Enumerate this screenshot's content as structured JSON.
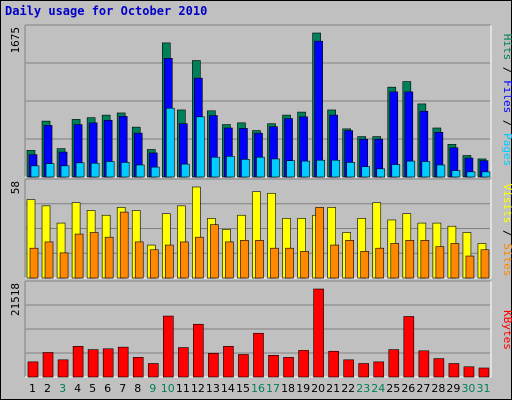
{
  "chart_data": [
    {
      "type": "bar",
      "title": "Daily usage for October 2010",
      "categories": [
        "1",
        "2",
        "3",
        "4",
        "5",
        "6",
        "7",
        "8",
        "9",
        "10",
        "11",
        "12",
        "13",
        "14",
        "15",
        "16",
        "17",
        "18",
        "19",
        "20",
        "21",
        "22",
        "23",
        "24",
        "25",
        "26",
        "27",
        "28",
        "29",
        "30",
        "31"
      ],
      "weekend_days": [
        "3",
        "9",
        "10",
        "16",
        "17",
        "23",
        "24",
        "30",
        "31"
      ],
      "ymax_label": "1675",
      "ylim": [
        0,
        1675
      ],
      "grid": true,
      "series": [
        {
          "name": "Hits",
          "color": "#00805a",
          "values": [
            310,
            650,
            330,
            670,
            690,
            720,
            745,
            580,
            320,
            1560,
            780,
            1355,
            770,
            610,
            630,
            540,
            620,
            720,
            755,
            1675,
            780,
            560,
            470,
            470,
            1045,
            1110,
            850,
            570,
            380,
            250,
            210
          ]
        },
        {
          "name": "Files",
          "color": "#0000ff",
          "values": [
            260,
            600,
            290,
            610,
            630,
            660,
            705,
            510,
            280,
            1380,
            620,
            1150,
            715,
            570,
            565,
            510,
            585,
            680,
            700,
            1580,
            720,
            540,
            440,
            440,
            990,
            990,
            765,
            520,
            340,
            220,
            190
          ]
        },
        {
          "name": "Pages",
          "color": "#00ccff",
          "values": [
            130,
            155,
            130,
            165,
            160,
            180,
            170,
            140,
            115,
            800,
            150,
            700,
            230,
            240,
            205,
            230,
            210,
            190,
            185,
            195,
            195,
            170,
            120,
            95,
            145,
            185,
            180,
            140,
            75,
            60,
            60
          ]
        }
      ]
    },
    {
      "type": "bar",
      "categories": [
        "1",
        "2",
        "3",
        "4",
        "5",
        "6",
        "7",
        "8",
        "9",
        "10",
        "11",
        "12",
        "13",
        "14",
        "15",
        "16",
        "17",
        "18",
        "19",
        "20",
        "21",
        "22",
        "23",
        "24",
        "25",
        "26",
        "27",
        "28",
        "29",
        "30",
        "31"
      ],
      "ymax_label": "58",
      "ylim": [
        0,
        58
      ],
      "grid": true,
      "series": [
        {
          "name": "Visits",
          "color": "#ffff00",
          "values": [
            50,
            46,
            35,
            48,
            43,
            40,
            45,
            43,
            21,
            41,
            46,
            58,
            38,
            31,
            40,
            55,
            54,
            38,
            38,
            40,
            45,
            29,
            38,
            48,
            37,
            41,
            35,
            35,
            33,
            29,
            22
          ]
        },
        {
          "name": "Sites",
          "color": "#ff8800",
          "values": [
            19,
            23,
            16,
            28,
            29,
            26,
            42,
            23,
            18,
            21,
            23,
            26,
            34,
            23,
            24,
            24,
            19,
            19,
            17,
            45,
            21,
            24,
            17,
            19,
            22,
            24,
            24,
            20,
            22,
            14,
            18
          ]
        }
      ]
    },
    {
      "type": "bar",
      "categories": [
        "1",
        "2",
        "3",
        "4",
        "5",
        "6",
        "7",
        "8",
        "9",
        "10",
        "11",
        "12",
        "13",
        "14",
        "15",
        "16",
        "17",
        "18",
        "19",
        "20",
        "21",
        "22",
        "23",
        "24",
        "25",
        "26",
        "27",
        "28",
        "29",
        "30",
        "31"
      ],
      "ymax_label": "21518",
      "ylim": [
        0,
        21518
      ],
      "grid": true,
      "series": [
        {
          "name": "KBytes",
          "color": "#ff0000",
          "values": [
            3700,
            6000,
            4200,
            7500,
            6700,
            6900,
            7300,
            4800,
            3300,
            14900,
            7200,
            12900,
            5800,
            7500,
            5500,
            10700,
            5300,
            4800,
            6500,
            21518,
            6300,
            4200,
            3300,
            3700,
            6700,
            14800,
            6400,
            4500,
            3300,
            2500,
            2200
          ]
        }
      ]
    }
  ],
  "axis_labels": {
    "right_top": [
      "Pages",
      "Files",
      "Hits"
    ],
    "right_mid": [
      "Sites",
      "Visits"
    ],
    "right_bot": [
      "KBytes"
    ]
  },
  "colors": {
    "background": "#c0c0c0",
    "plot_bg": "#c0c0c0",
    "title": "#0000c8",
    "day_weekday": "#000000",
    "day_weekend": "#00805a"
  }
}
